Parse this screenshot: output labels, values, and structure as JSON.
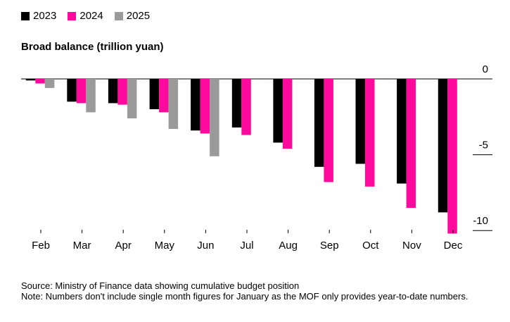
{
  "chart_data": {
    "type": "bar",
    "title": "Broad balance (trillion yuan)",
    "xlabel": "",
    "ylabel": "",
    "categories": [
      "Feb",
      "Mar",
      "Apr",
      "May",
      "Jun",
      "Jul",
      "Aug",
      "Sep",
      "Oct",
      "Nov",
      "Dec"
    ],
    "series": [
      {
        "name": "2023",
        "color": "#000000",
        "values": [
          -0.1,
          -1.5,
          -1.6,
          -2.0,
          -3.4,
          -3.2,
          -4.2,
          -5.8,
          -5.6,
          -6.9,
          -8.8
        ]
      },
      {
        "name": "2024",
        "color": "#ff0a9c",
        "values": [
          -0.3,
          -1.6,
          -1.7,
          -2.2,
          -3.6,
          -3.7,
          -4.6,
          -6.8,
          -7.1,
          -8.5,
          -10.2
        ]
      },
      {
        "name": "2025",
        "color": "#9a9a9a",
        "values": [
          -0.6,
          -2.2,
          -2.6,
          -3.3,
          -5.1,
          null,
          null,
          null,
          null,
          null,
          null
        ]
      }
    ],
    "ylim": [
      -10.5,
      0
    ],
    "yticks": [
      0,
      -5,
      -10
    ],
    "ytick_labels": [
      "0",
      "-5",
      "-10"
    ],
    "grid": false,
    "legend_position": "top-left"
  },
  "notes": {
    "source": "Source: Ministry of Finance data showing cumulative budget position",
    "note": "Note: Numbers don't include single month figures for January as the MOF only provides year-to-date numbers."
  }
}
